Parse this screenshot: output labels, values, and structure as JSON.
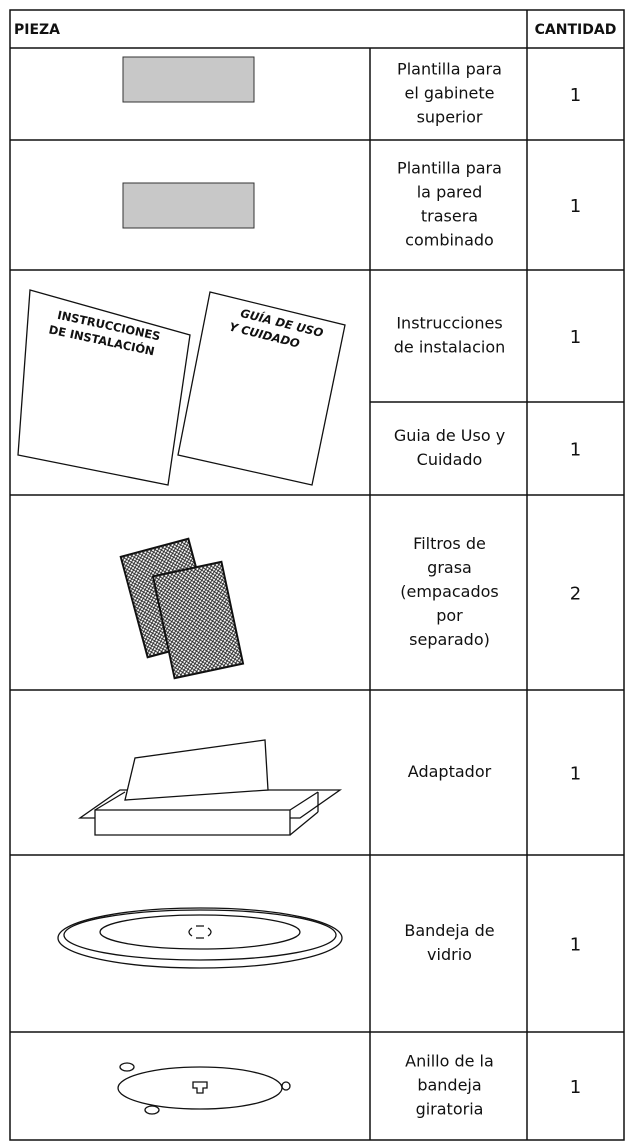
{
  "header": {
    "part": "PIEZA",
    "quantity": "CANTIDAD"
  },
  "manuals": {
    "installation": [
      "INSTRUCCIONES",
      "DE INSTALACIÓN"
    ],
    "guide": [
      "GUÍA DE USO",
      "Y CUIDADO"
    ]
  },
  "rows": [
    {
      "description": [
        "Plantilla para",
        "el gabinete",
        "superior"
      ],
      "quantity": 1
    },
    {
      "description": [
        "Plantilla para",
        "la  pared",
        "trasera",
        "combinado"
      ],
      "quantity": 1
    },
    {
      "description": [
        "Instrucciones",
        "de instalacion"
      ],
      "quantity": 1
    },
    {
      "description": [
        "Guia de Uso y",
        "Cuidado"
      ],
      "quantity": 1
    },
    {
      "description": [
        "Filtros de",
        "grasa",
        "(empacados",
        "por",
        "separado)"
      ],
      "quantity": 2
    },
    {
      "description": [
        "Adaptador"
      ],
      "quantity": 1
    },
    {
      "description": [
        "Bandeja de",
        "vidrio"
      ],
      "quantity": 1
    },
    {
      "description": [
        "Anillo de la",
        "bandeja",
        "giratoria"
      ],
      "quantity": 1
    }
  ]
}
